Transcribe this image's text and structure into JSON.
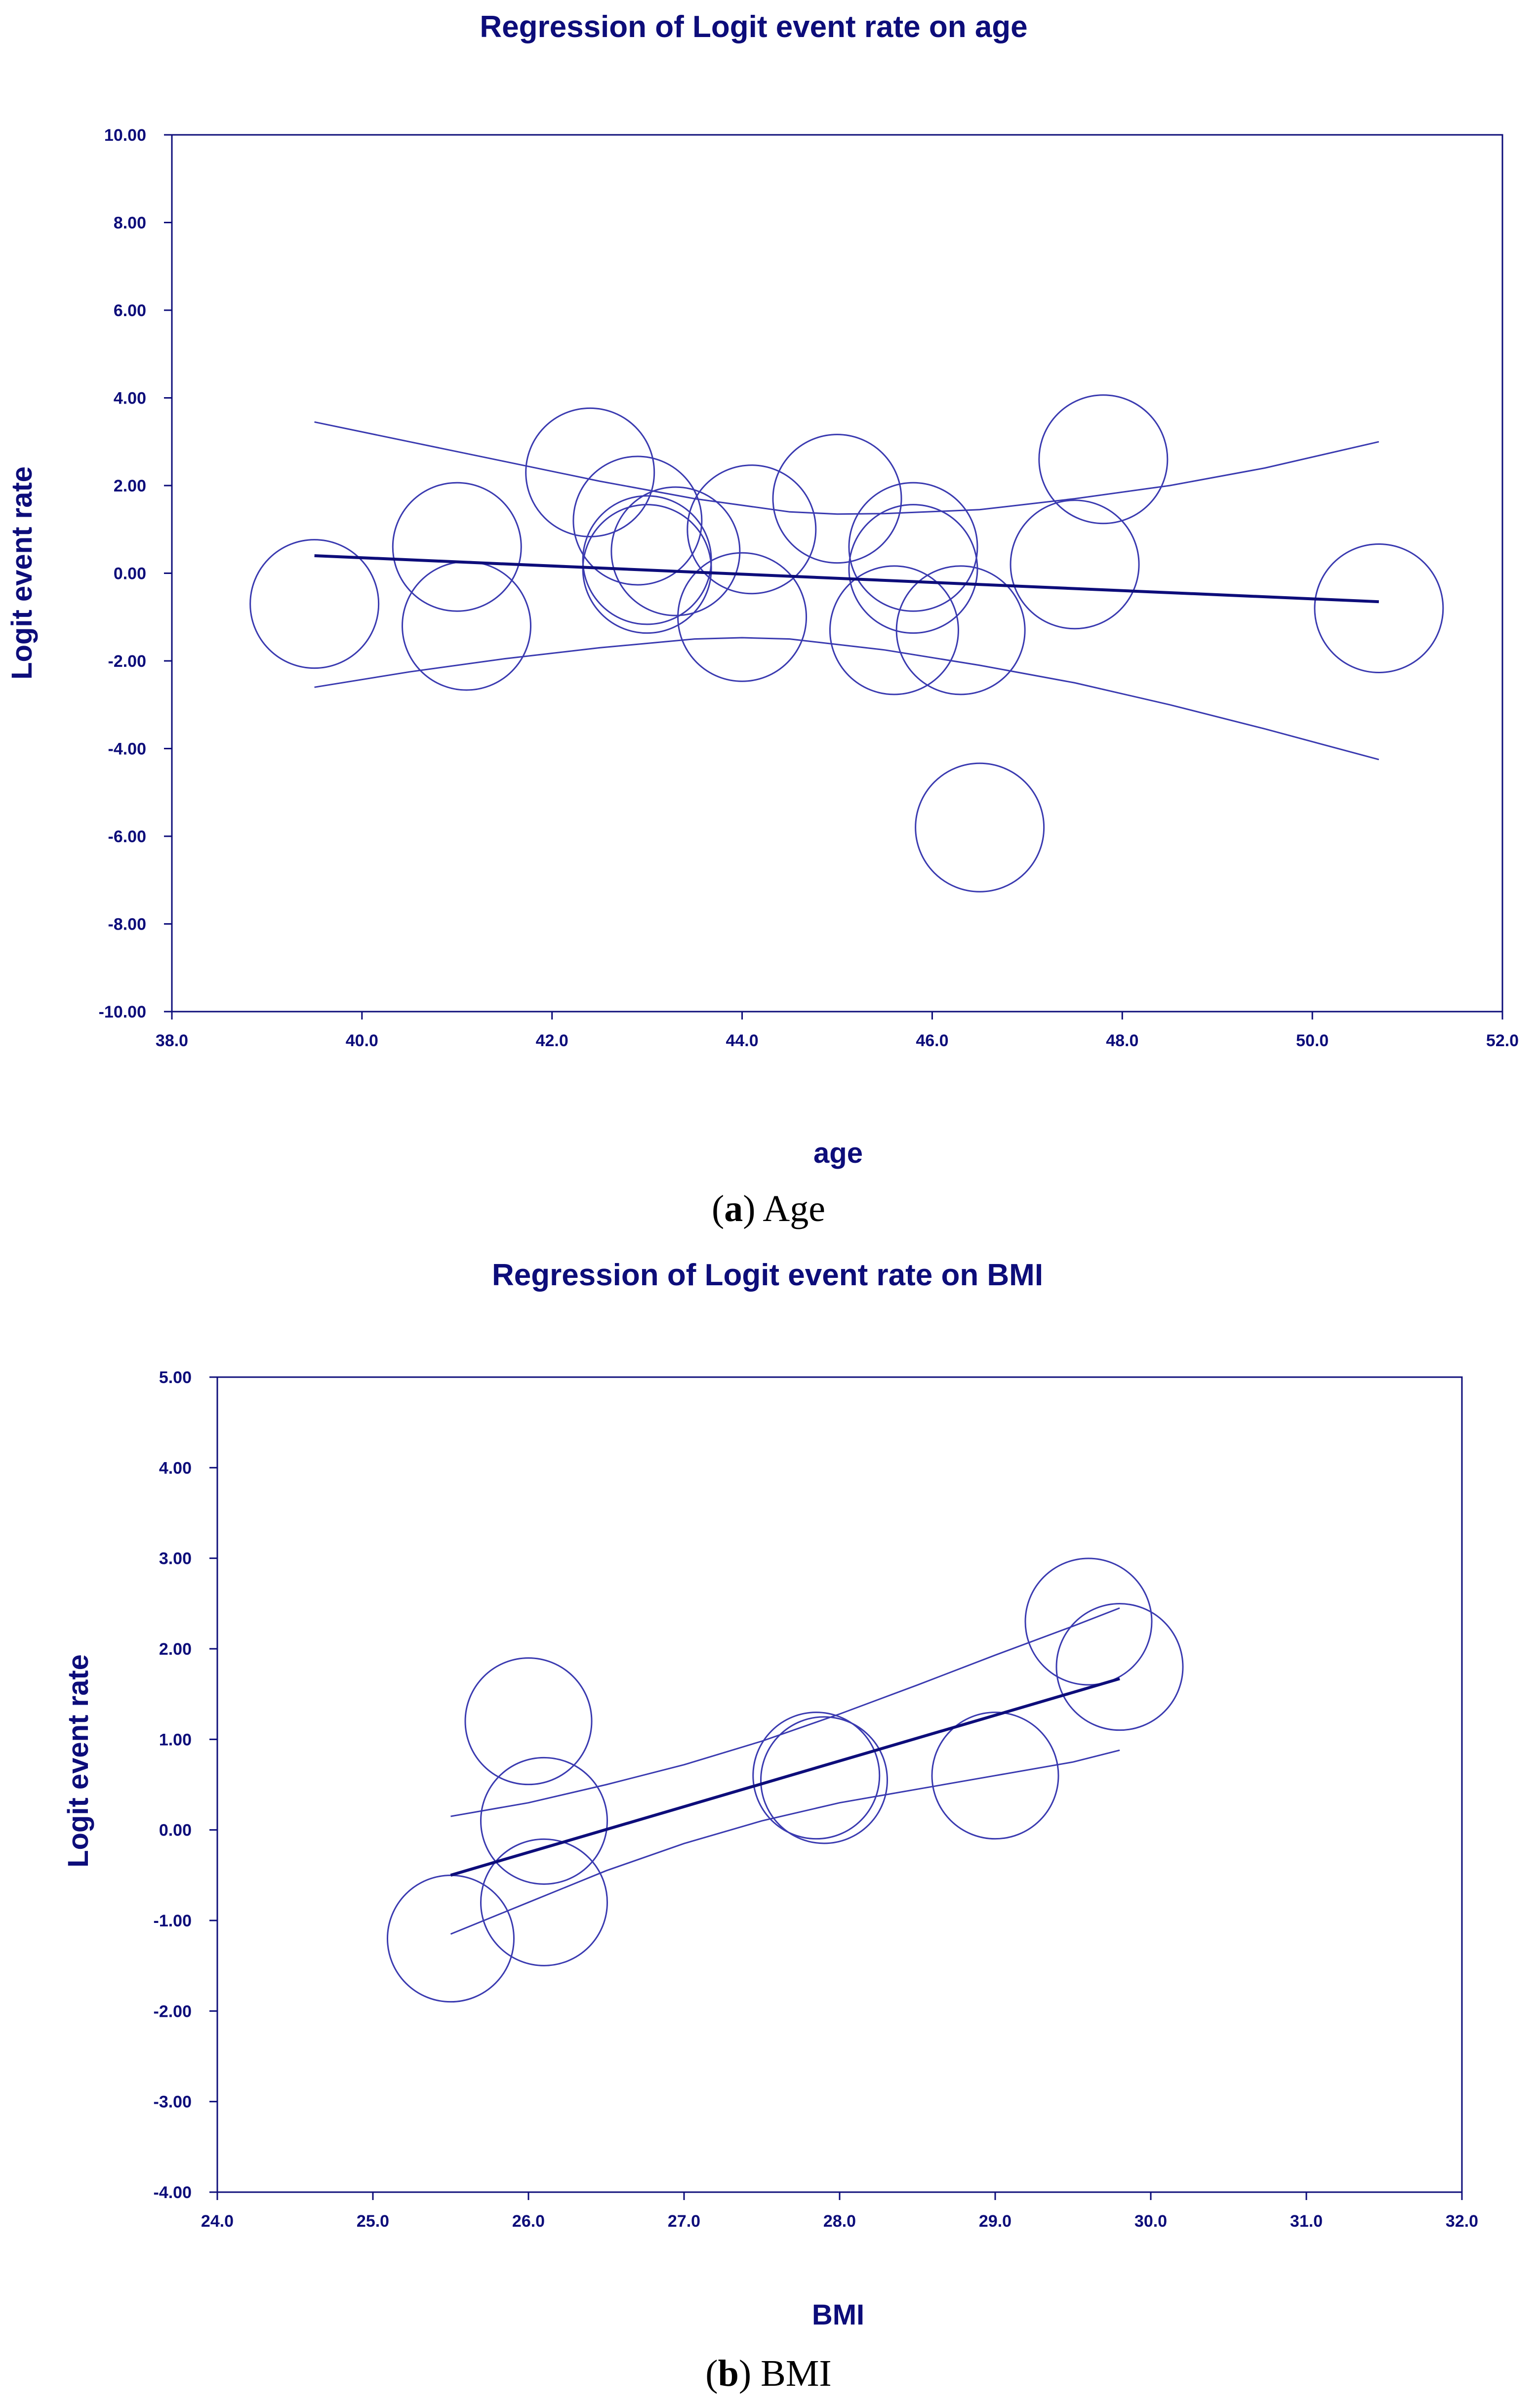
{
  "colors": {
    "axis": "#0d0d7a",
    "regression_line": "#0d0d7a",
    "ci_curve": "#3a3ab0",
    "bubble": "#3a3ab0",
    "caption": "#000000"
  },
  "captions": [
    {
      "letter": "a",
      "open": "(",
      "close": ")",
      "text": " Age"
    },
    {
      "letter": "b",
      "open": "(",
      "close": ")",
      "text": " BMI"
    }
  ],
  "chart_data": [
    {
      "type": "scatter",
      "title": "Regression of Logit event rate on age",
      "xlabel": "age",
      "ylabel": "Logit event rate",
      "xlim": [
        38.0,
        52.0
      ],
      "ylim": [
        -10.0,
        10.0
      ],
      "xticks": [
        "38.0",
        "40.0",
        "42.0",
        "44.0",
        "46.0",
        "48.0",
        "50.0",
        "52.0"
      ],
      "yticks": [
        "10.00",
        "8.00",
        "6.00",
        "4.00",
        "2.00",
        "0.00",
        "-2.00",
        "-4.00",
        "-6.00",
        "-8.00",
        "-10.00"
      ],
      "grid": false,
      "bubbles": [
        {
          "x": 39.5,
          "y": -0.7
        },
        {
          "x": 41.0,
          "y": 0.6
        },
        {
          "x": 41.1,
          "y": -1.2
        },
        {
          "x": 42.4,
          "y": 2.3
        },
        {
          "x": 42.9,
          "y": 1.2
        },
        {
          "x": 43.0,
          "y": 0.1
        },
        {
          "x": 43.0,
          "y": 0.3
        },
        {
          "x": 43.3,
          "y": 0.5
        },
        {
          "x": 44.0,
          "y": -1.0
        },
        {
          "x": 44.1,
          "y": 1.0
        },
        {
          "x": 45.0,
          "y": 1.7
        },
        {
          "x": 45.6,
          "y": -1.3
        },
        {
          "x": 45.8,
          "y": 0.1
        },
        {
          "x": 45.8,
          "y": 0.6
        },
        {
          "x": 46.3,
          "y": -1.3
        },
        {
          "x": 46.5,
          "y": -5.8
        },
        {
          "x": 47.5,
          "y": 0.2
        },
        {
          "x": 47.8,
          "y": 2.6
        },
        {
          "x": 50.7,
          "y": -0.8
        }
      ],
      "regression": {
        "x": [
          39.5,
          50.7
        ],
        "y": [
          0.4,
          -0.65
        ]
      },
      "ci_upper": {
        "x": [
          39.5,
          40.5,
          41.5,
          42.5,
          43.5,
          44.5,
          45.0,
          45.5,
          46.5,
          47.5,
          48.5,
          49.5,
          50.7
        ],
        "y": [
          3.45,
          3.0,
          2.55,
          2.1,
          1.7,
          1.4,
          1.35,
          1.36,
          1.45,
          1.7,
          2.0,
          2.4,
          3.0
        ]
      },
      "ci_lower": {
        "x": [
          39.5,
          40.5,
          41.5,
          42.5,
          43.5,
          44.0,
          44.5,
          45.5,
          46.5,
          47.5,
          48.5,
          49.5,
          50.7
        ],
        "y": [
          -2.6,
          -2.25,
          -1.95,
          -1.7,
          -1.5,
          -1.47,
          -1.5,
          -1.75,
          -2.1,
          -2.5,
          -3.0,
          -3.55,
          -4.25
        ]
      }
    },
    {
      "type": "scatter",
      "title": "Regression of Logit event rate on BMI",
      "xlabel": "BMI",
      "ylabel": "Logit event rate",
      "xlim": [
        24.0,
        32.0
      ],
      "ylim": [
        -4.0,
        5.0
      ],
      "xticks": [
        "24.0",
        "25.0",
        "26.0",
        "27.0",
        "28.0",
        "29.0",
        "30.0",
        "31.0",
        "32.0"
      ],
      "yticks": [
        "5.00",
        "4.00",
        "3.00",
        "2.00",
        "1.00",
        "0.00",
        "-1.00",
        "-2.00",
        "-3.00",
        "-4.00"
      ],
      "grid": false,
      "bubbles": [
        {
          "x": 25.5,
          "y": -1.2
        },
        {
          "x": 26.0,
          "y": 1.2
        },
        {
          "x": 26.1,
          "y": 0.1
        },
        {
          "x": 26.1,
          "y": -0.8
        },
        {
          "x": 27.85,
          "y": 0.6
        },
        {
          "x": 27.9,
          "y": 0.55
        },
        {
          "x": 29.0,
          "y": 0.6
        },
        {
          "x": 29.6,
          "y": 2.3
        },
        {
          "x": 29.8,
          "y": 1.8
        }
      ],
      "regression": {
        "x": [
          25.5,
          29.8
        ],
        "y": [
          -0.5,
          1.67
        ]
      },
      "ci_upper": {
        "x": [
          25.5,
          26.0,
          26.5,
          27.0,
          27.5,
          28.0,
          28.5,
          29.0,
          29.5,
          29.8
        ],
        "y": [
          0.15,
          0.3,
          0.5,
          0.72,
          0.98,
          1.28,
          1.6,
          1.93,
          2.25,
          2.45
        ]
      },
      "ci_lower": {
        "x": [
          25.5,
          26.0,
          26.5,
          27.0,
          27.5,
          28.0,
          28.5,
          29.0,
          29.5,
          29.8
        ],
        "y": [
          -1.15,
          -0.8,
          -0.45,
          -0.15,
          0.1,
          0.3,
          0.45,
          0.6,
          0.75,
          0.88
        ]
      }
    }
  ]
}
